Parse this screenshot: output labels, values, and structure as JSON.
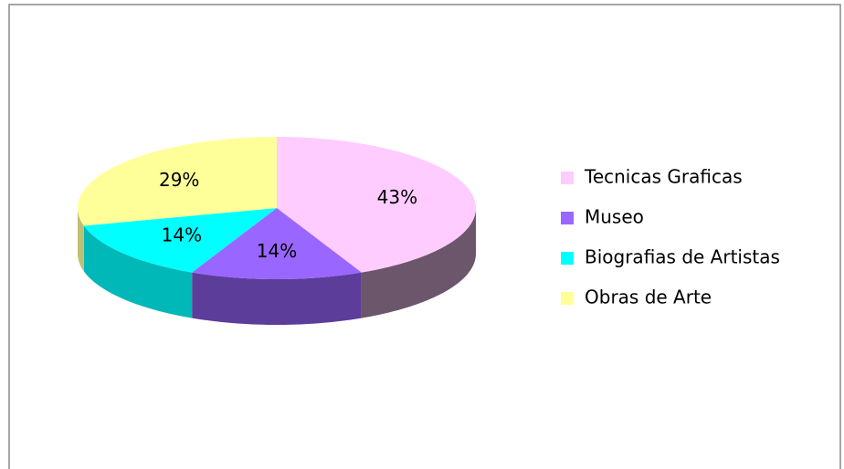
{
  "chart_data": {
    "type": "pie",
    "categories": [
      "Tecnicas Graficas",
      "Museo",
      "Biografias de Artistas",
      "Obras de Arte"
    ],
    "values": [
      43,
      14,
      14,
      29
    ],
    "value_labels": [
      "43%",
      "14%",
      "14%",
      "29%"
    ],
    "colors": [
      "#ffccff",
      "#9966ff",
      "#00ffff",
      "#ffff99"
    ],
    "legend": "right"
  }
}
